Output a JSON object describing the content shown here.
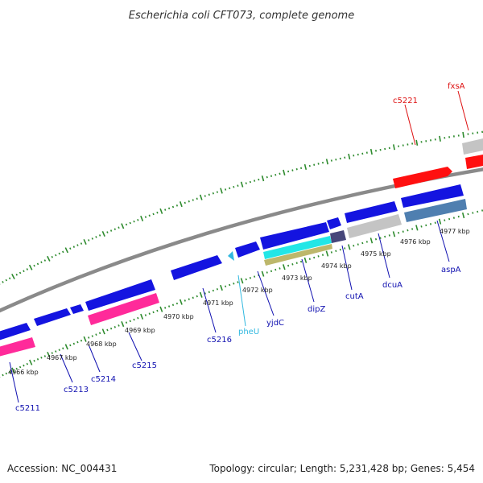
{
  "title": "Escherichia coli CFT073, complete genome",
  "footer": {
    "accession": "Accession: NC_004431",
    "summary": "Topology: circular; Length: 5,231,428 bp; Genes: 5,454"
  },
  "colors": {
    "backbone": "#8a8a8a",
    "tick": "#2e8b2e",
    "blue_gene": "#1414e0",
    "magenta_gene": "#ff2a9a",
    "red_gene": "#ff1010",
    "grey_gene": "#c4c4c4",
    "cyan_gene": "#22e6e6",
    "olive_gene": "#bdb76b",
    "steel_gene": "#4f7fb0",
    "slate_gene": "#46467a",
    "label_blue": "#1010b0",
    "label_red": "#dd1010",
    "label_cyan": "#30b8e0"
  },
  "scale_labels": [
    "4966 kbp",
    "4967 kbp",
    "4968 kbp",
    "4969 kbp",
    "4970 kbp",
    "4971 kbp",
    "4972 kbp",
    "4973 kbp",
    "4974 kbp",
    "4975 kbp",
    "4976 kbp",
    "4977 kbp"
  ],
  "gene_labels": [
    {
      "text": "c5211",
      "color": "blue"
    },
    {
      "text": "c5213",
      "color": "blue"
    },
    {
      "text": "c5214",
      "color": "blue"
    },
    {
      "text": "c5215",
      "color": "blue"
    },
    {
      "text": "c5216",
      "color": "blue"
    },
    {
      "text": "pheU",
      "color": "cyan"
    },
    {
      "text": "yjdC",
      "color": "blue"
    },
    {
      "text": "dipZ",
      "color": "blue"
    },
    {
      "text": "cutA",
      "color": "blue"
    },
    {
      "text": "dcuA",
      "color": "blue"
    },
    {
      "text": "aspA",
      "color": "blue"
    },
    {
      "text": "c5221",
      "color": "red"
    },
    {
      "text": "fxsA",
      "color": "red"
    }
  ]
}
